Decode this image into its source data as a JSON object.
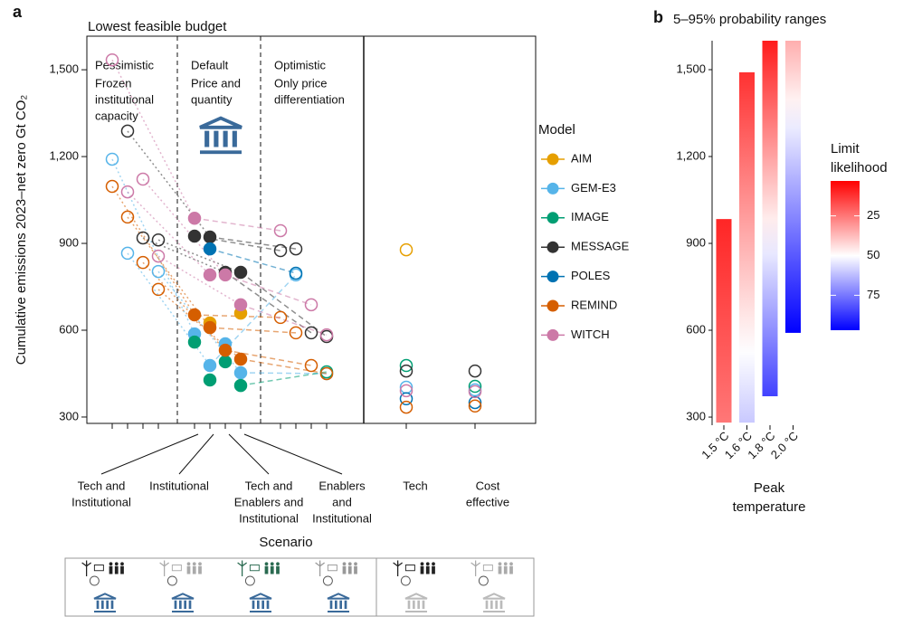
{
  "chart_data": [
    {
      "type": "scatter",
      "panel": "a",
      "title": "Lowest feasible budget",
      "ylabel": "Cumulative emissions 2023–net zero Gt CO₂",
      "xlabel": "Scenario",
      "ylim": [
        278,
        1616
      ],
      "yticks": [
        300,
        600,
        900,
        {
          "value": 1200,
          "label": "1,200"
        },
        {
          "value": 1500,
          "label": "1,500"
        }
      ],
      "groups": [
        {
          "name": "Pessimistic",
          "lines": [
            "Frozen",
            "institutional",
            "capacity"
          ],
          "filled": false
        },
        {
          "name": "Default",
          "lines": [
            "Price and",
            "quantity"
          ],
          "filled": true
        },
        {
          "name": "Optimistic",
          "lines": [
            "Only price",
            "differentiation"
          ],
          "filled": false
        }
      ],
      "categories": [
        [
          "Tech and",
          "Institutional"
        ],
        [
          "Institutional"
        ],
        [
          "Tech and",
          "Enablers and",
          "Institutional"
        ],
        [
          "Enablers",
          "and",
          "Institutional"
        ],
        [
          "Tech"
        ],
        [
          "Cost",
          "effective"
        ]
      ],
      "legend_title": "Model",
      "series": [
        {
          "name": "AIM",
          "color": "#E69F00",
          "values": [
            null,
            null,
            null,
            null,
            null,
            625,
            null,
            659,
            null,
            null,
            null,
            null,
            878,
            null
          ]
        },
        {
          "name": "GEM-E3",
          "color": "#56B4E9",
          "values": [
            1191,
            866,
            null,
            803,
            587,
            478,
            553,
            453,
            null,
            791,
            null,
            450,
            403,
            394
          ]
        },
        {
          "name": "IMAGE",
          "color": "#009E73",
          "values": [
            null,
            null,
            null,
            null,
            559,
            428,
            491,
            409,
            null,
            null,
            null,
            456,
            478,
            406
          ]
        },
        {
          "name": "MESSAGE",
          "color": "#333333",
          "values": [
            null,
            1288,
            919,
            912,
            925,
            922,
            800,
            800,
            875,
            881,
            591,
            578,
            459,
            459
          ]
        },
        {
          "name": "POLES",
          "color": "#0072B2",
          "values": [
            null,
            null,
            null,
            null,
            null,
            881,
            null,
            null,
            null,
            797,
            null,
            null,
            363,
            350
          ]
        },
        {
          "name": "REMIND",
          "color": "#D55E00",
          "values": [
            1097,
            991,
            834,
            741,
            653,
            609,
            531,
            500,
            644,
            591,
            478,
            450,
            334,
            338
          ]
        },
        {
          "name": "WITCH",
          "color": "#CC79A7",
          "values": [
            1534,
            1078,
            1122,
            856,
            987,
            791,
            791,
            688,
            944,
            null,
            688,
            584,
            391,
            388
          ]
        }
      ]
    },
    {
      "type": "range",
      "panel": "b",
      "title": "5–95% probability ranges",
      "xlabel": [
        "Peak",
        "temperature"
      ],
      "ylim": [
        272,
        1600
      ],
      "yticks": [
        300,
        600,
        900,
        {
          "value": 1200,
          "label": "1,200"
        },
        {
          "value": 1500,
          "label": "1,500"
        }
      ],
      "categories": [
        "1.5 °C",
        "1.6 °C",
        "1.8 °C",
        "2.0 °C"
      ],
      "low": [
        281,
        281,
        372,
        591
      ],
      "high": [
        984,
        1491,
        1600,
        1600
      ],
      "likelihood_bottom": [
        25,
        60,
        85,
        97
      ],
      "likelihood_top": [
        10,
        12,
        8,
        35
      ],
      "colorbar": {
        "title": [
          "Limit",
          "likelihood"
        ],
        "lim": [
          3,
          97
        ],
        "ticks": [
          25,
          50,
          75
        ],
        "colors": [
          "#ff0000",
          "#ffffff",
          "#0000ff"
        ]
      }
    }
  ]
}
